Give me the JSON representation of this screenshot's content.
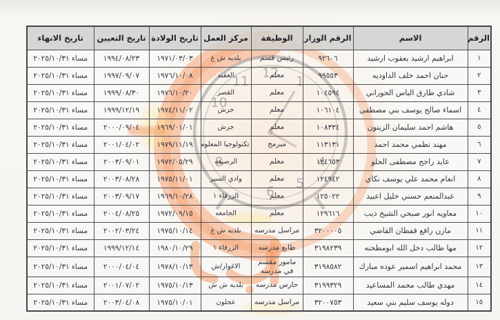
{
  "table": {
    "headers": [
      "الرقم",
      "الاسم",
      "الرقم الوزاري",
      "الوظيفة",
      "مركز العمل",
      "تاريخ الولادة",
      "تاريخ التعيين",
      "تاريخ الانهاء"
    ],
    "rows": [
      {
        "num": "١",
        "name": "ابراهيم ارشيد يعقوب ارشيد",
        "ministry_no": "٩٢٦٠٦",
        "job": "رئيس قسم",
        "center": "بلديه ش غ",
        "birth_date": "١٩٧١/٠٣/٠٣",
        "appoint_date": "١٩٩٤/٠٨/٢٣",
        "end_date": "مساء ٢٠٢٥/١٠/٣١"
      },
      {
        "num": "٢",
        "name": "حنان احمد خلف الداوديه",
        "ministry_no": "٩٩٥٥٣",
        "job": "معلم",
        "center": "العقبه",
        "birth_date": "١٩٧٦/١٠/٠٨",
        "appoint_date": "١٩٩٧/٠٩/٠٧",
        "end_date": "مساء ٢٠٢٥/١٠/٣١"
      },
      {
        "num": "٣",
        "name": "شادي طارق الياس الحوراني",
        "ministry_no": "١٠٤٥٩٤",
        "job": "معلم",
        "center": "القصر",
        "birth_date": "١٩٧٦/١٠/٢٠",
        "appoint_date": "١٩٩٩/٠٨/٣٠",
        "end_date": "مساء ٢٠٢٥/١٠/٣١"
      },
      {
        "num": "٤",
        "name": "اسماء صالح يوسف بني مصطفى",
        "ministry_no": "١٠٦١٠٤",
        "job": "معلم",
        "center": "جرش",
        "birth_date": "١٩٧٤/١١/٠٢",
        "appoint_date": "١٩٩٩/١٢/١٩",
        "end_date": "مساء ٢٠٢٥/١٠/٣١"
      },
      {
        "num": "٥",
        "name": "هاشم احمد سليمان الزيتون",
        "ministry_no": "١٠٨٣٣٤",
        "job": "معلم",
        "center": "جرش",
        "birth_date": "١٩٦٩/٠١/٠١",
        "appoint_date": "٢٠٠٠/٠٩/٠٤",
        "end_date": "مساء ٢٠٢٥/١٠/٣١"
      },
      {
        "num": "٦",
        "name": "مهند نظمي محمد احمد",
        "ministry_no": "١١٣١٣١",
        "job": "مبرمج",
        "center": "تكنولوجيا المعلومات",
        "birth_date": "١٩٧٩/١١/١٩",
        "appoint_date": "٢٠٠١/٠٤/٠٢",
        "end_date": "مساء ٢٠٢٥/١٠/٣١"
      },
      {
        "num": "٧",
        "name": "عايد راجح مصطفى الحلو",
        "ministry_no": "١٢٤٦٥٣",
        "job": "معلم",
        "center": "الرصيفه",
        "birth_date": "١٩٧٢/٠٥/٢٩",
        "appoint_date": "٢٠٠٣/٠٩/٠١",
        "end_date": "مساء ٢٠٢٥/١٠/٣١"
      },
      {
        "num": "٨",
        "name": "انعام محمد علي يوسف نكاي",
        "ministry_no": "١٢٤٩٤٢",
        "job": "معلم",
        "center": "وادي السير",
        "birth_date": "١٩٧٥/١١/٠١",
        "appoint_date": "٢٠٠٣/٠٨/٢٨",
        "end_date": "مساء ٢٠٢٥/١٠/٣١"
      },
      {
        "num": "٩",
        "name": "عبدالمنعم حسني خليل اعبيد",
        "ministry_no": "١٢٥٠٢٢",
        "job": "معلم",
        "center": "الزرقاء ١",
        "birth_date": "١٩٦٩/١٠/٢٨",
        "appoint_date": "٢٠٠٣/٠٩/١٧",
        "end_date": "مساء ٢٠٢٥/١٠/٣١"
      },
      {
        "num": "١٠",
        "name": "معاويه انور صبحي الشيخ ذيب",
        "ministry_no": "١٢٩٦١٦",
        "job": "معلم",
        "center": "الجامعه",
        "birth_date": "١٩٧٢/٠٩/١٥",
        "appoint_date": "٢٠٠٤/٠٨/٢٥",
        "end_date": "مساء ٢٠٢٥/١٠/٣١"
      },
      {
        "num": "١١",
        "name": "مازن رافع قفطان القاضي",
        "ministry_no": "٣٢٠٠٠٠٥",
        "job": "مراسل مدرسه",
        "center": "بلديه ش غ",
        "birth_date": "١٩٧٥/١٠/١٤",
        "appoint_date": "٢٠٠٢/٠٣/٢٤",
        "end_date": "مساء ٢٠٢٥/١٠/٣١"
      },
      {
        "num": "١٢",
        "name": "مها طالب دخل الله ابومطحنه",
        "ministry_no": "٣١٩٨٢٣٩",
        "job": "طابع مدرسه",
        "center": "الزرقاء ١",
        "birth_date": "١٩٨٠/١٠/٢٩",
        "appoint_date": "١٩٩٩/١٢/١٤",
        "end_date": "مساء ٢٠٢٥/١٠/٣١"
      },
      {
        "num": "١٣",
        "name": "محمد ابراهيم اسمير عوده مبارك",
        "ministry_no": "٣١٩٨٥٨٢",
        "job": "مامور مقسم في مدرسه",
        "center": "الاغوار/ش",
        "birth_date": "١٩٧٨/١٠/١٣",
        "appoint_date": "٢٠٠٠/٠٤/٠٤",
        "end_date": "مساء ٢٠٢٥/١٠/٣١"
      },
      {
        "num": "١٤",
        "name": "مهدي طالب محمد المساعيد",
        "ministry_no": "٣١٩٩٣٢٩",
        "job": "حارس مدرسه",
        "center": "بلديه ش ش",
        "birth_date": "١٩٧٥/١٠/١٣",
        "appoint_date": "٢٠٠١/٠٧/٠٢",
        "end_date": "مساء ٢٠٢٥/١٠/٣١"
      },
      {
        "num": "١٥",
        "name": "دوله يوسف سليم بني سعيد",
        "ministry_no": "٣٢٠٠٧٥٣",
        "job": "مراسل مدرسه",
        "center": "عجلون",
        "birth_date": "١٩٧٥/١٠/٠١",
        "appoint_date": "٢٠٠٣/٠٤/٠٨",
        "end_date": "مساء ٢٠٢٥/١٠/٣١"
      }
    ]
  },
  "watermark": {
    "type": "news-agency-clock-logo",
    "accent_color": "#f26a21",
    "clock_numbers": [
      {
        "n": "12",
        "deg": 0
      },
      {
        "n": "1",
        "deg": 30
      },
      {
        "n": "4",
        "deg": 120
      },
      {
        "n": "5",
        "deg": 150
      },
      {
        "n": "6",
        "deg": 180
      },
      {
        "n": "8",
        "deg": 240
      },
      {
        "n": "10",
        "deg": 300
      },
      {
        "n": "11",
        "deg": 330
      }
    ]
  }
}
